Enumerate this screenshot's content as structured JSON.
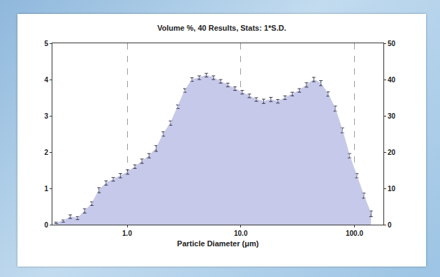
{
  "chart_data": {
    "type": "area",
    "title": "Volume %, 40 Results, Stats: 1*S.D.",
    "x_label": "Particle Diameter (μm)",
    "x": [
      0.237,
      0.274,
      0.316,
      0.366,
      0.423,
      0.489,
      0.565,
      0.653,
      0.755,
      0.873,
      1.01,
      1.17,
      1.35,
      1.56,
      1.8,
      2.08,
      2.41,
      2.79,
      3.22,
      3.72,
      4.31,
      4.98,
      5.75,
      6.65,
      7.69,
      8.89,
      10.3,
      11.9,
      13.7,
      15.9,
      18.4,
      21.2,
      24.5,
      28.4,
      32.8,
      37.9,
      43.9,
      50.7,
      58.6,
      67.8,
      78.3,
      90.6,
      105,
      121,
      140
    ],
    "values": [
      0.05,
      0.1,
      0.22,
      0.18,
      0.38,
      0.58,
      0.95,
      1.15,
      1.25,
      1.35,
      1.45,
      1.6,
      1.75,
      1.9,
      2.1,
      2.5,
      2.8,
      3.25,
      3.7,
      4.0,
      4.05,
      4.12,
      4.05,
      3.95,
      3.85,
      3.75,
      3.65,
      3.55,
      3.45,
      3.4,
      3.45,
      3.4,
      3.5,
      3.6,
      3.7,
      3.85,
      4.0,
      3.9,
      3.6,
      3.2,
      2.6,
      1.9,
      1.35,
      0.8,
      0.3
    ],
    "error": [
      0.02,
      0.03,
      0.05,
      0.04,
      0.06,
      0.05,
      0.07,
      0.06,
      0.05,
      0.06,
      0.06,
      0.05,
      0.06,
      0.06,
      0.08,
      0.06,
      0.06,
      0.05,
      0.05,
      0.05,
      0.05,
      0.05,
      0.05,
      0.05,
      0.05,
      0.05,
      0.05,
      0.05,
      0.05,
      0.06,
      0.06,
      0.05,
      0.05,
      0.05,
      0.05,
      0.06,
      0.06,
      0.07,
      0.06,
      0.07,
      0.07,
      0.06,
      0.06,
      0.07,
      0.08
    ],
    "color": "#c6c9e9",
    "log": "x",
    "grid": true,
    "xlim": [
      0.22,
      180
    ],
    "xticks": [
      {
        "value": 1,
        "label": "1.0"
      },
      {
        "value": 10,
        "label": "10.0"
      },
      {
        "value": 100,
        "label": "100.0"
      }
    ],
    "ylim": [
      0,
      5
    ],
    "yticks": [
      0,
      1,
      2,
      3,
      4,
      5
    ],
    "y2lim": [
      0,
      50
    ],
    "y2ticks": [
      0,
      10,
      20,
      30,
      40,
      50
    ]
  }
}
